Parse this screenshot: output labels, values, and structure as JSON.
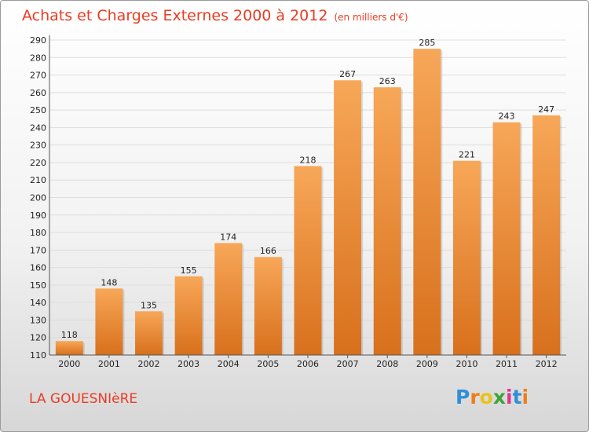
{
  "title": "Achats et Charges Externes 2000 à 2012",
  "unit_note": "(en milliers d'€)",
  "commune": "LA GOUESNIèRE",
  "logo": {
    "text": "Proxiti",
    "letter_colors": [
      "#2f8fd8",
      "#ef7d1a",
      "#e8c21a",
      "#3aa53a",
      "#d93a8f",
      "#2f8fd8",
      "#ef7d1a"
    ]
  },
  "colors": {
    "title": "#ea3c23",
    "bar_top": "#f7a758",
    "bar_bottom": "#d8701c"
  },
  "chart_data": {
    "type": "bar",
    "categories": [
      "2000",
      "2001",
      "2002",
      "2003",
      "2004",
      "2005",
      "2006",
      "2007",
      "2008",
      "2009",
      "2010",
      "2011",
      "2012"
    ],
    "values": [
      118,
      148,
      135,
      155,
      174,
      166,
      218,
      267,
      263,
      285,
      221,
      243,
      247
    ],
    "ylim": [
      110,
      290
    ],
    "yticks": [
      110,
      120,
      130,
      140,
      150,
      160,
      170,
      180,
      190,
      200,
      210,
      220,
      230,
      240,
      250,
      260,
      270,
      280,
      290
    ],
    "xlabel": "",
    "ylabel": "",
    "grid": true
  }
}
